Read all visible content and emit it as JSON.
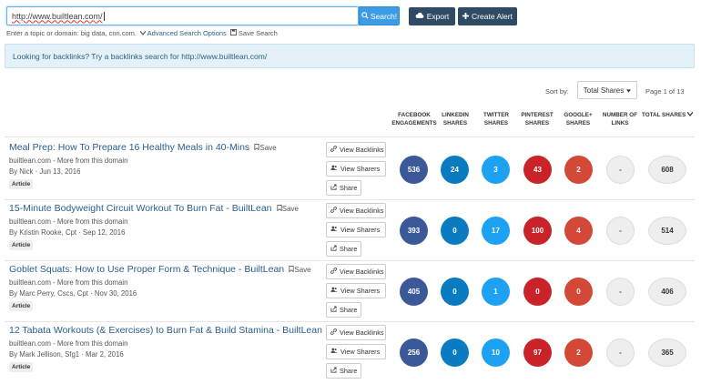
{
  "search": {
    "value": "http://www.builtlean.com/",
    "button_label": "Search!"
  },
  "toolbar": {
    "export_label": "Export",
    "alert_label": "Create Alert"
  },
  "hint": {
    "text": "Enter a topic or domain: big data, cnn.com.",
    "advanced_label": "Advanced Search Options",
    "save_search_label": "Save Search"
  },
  "info": {
    "text": "Looking for backlinks? Try a backlinks search for http://www.builtlean.com/"
  },
  "sort": {
    "label": "Sort by:",
    "selected": "Total Shares",
    "page": "Page 1 of 13"
  },
  "columns": [
    {
      "line1": "FACEBOOK",
      "line2": "ENGAGEMENTS"
    },
    {
      "line1": "LINKEDIN",
      "line2": "SHARES"
    },
    {
      "line1": "TWITTER",
      "line2": "SHARES"
    },
    {
      "line1": "PINTEREST",
      "line2": "SHARES"
    },
    {
      "line1": "GOOGLE+",
      "line2": "SHARES"
    },
    {
      "line1": "NUMBER OF",
      "line2": "LINKS"
    },
    {
      "line1": "TOTAL SHARES",
      "line2": ""
    }
  ],
  "actions": {
    "backlinks": "View Backlinks",
    "sharers": "View Sharers",
    "share": "Share"
  },
  "save_label": "Save",
  "rows": [
    {
      "title": "Meal Prep: How To Prepare 16 Healthy Meals in 40-Mins",
      "domain": "builtlean.com",
      "more": "More from this domain",
      "byline": "By Nick · Jun 13, 2016",
      "tag": "Article",
      "fb": "536",
      "li": "24",
      "tw": "3",
      "pi": "43",
      "gp": "2",
      "links": "-",
      "total": "608"
    },
    {
      "title": "15-Minute Bodyweight Circuit Workout To Burn Fat - BuiltLean",
      "domain": "builtlean.com",
      "more": "More from this domain",
      "byline": "By Kristin Rooke, Cpt · Sep 12, 2016",
      "tag": "Article",
      "fb": "393",
      "li": "0",
      "tw": "17",
      "pi": "100",
      "gp": "4",
      "links": "-",
      "total": "514"
    },
    {
      "title": "Goblet Squats: How to Use Proper Form & Technique - BuiltLean",
      "domain": "builtlean.com",
      "more": "More from this domain",
      "byline": "By Marc Perry, Cscs, Cpt · Nov 30, 2016",
      "tag": "Article",
      "fb": "405",
      "li": "0",
      "tw": "1",
      "pi": "0",
      "gp": "0",
      "links": "-",
      "total": "406"
    },
    {
      "title": "12 Tabata Workouts (& Exercises) to Burn Fat & Build Stamina - BuiltLean",
      "domain": "builtlean.com",
      "more": "More from this domain",
      "byline": "By Mark Jellison, Sfg1 · Mar 2, 2016",
      "tag": "Article",
      "fb": "256",
      "li": "0",
      "tw": "10",
      "pi": "97",
      "gp": "2",
      "links": "-",
      "total": "365"
    }
  ]
}
